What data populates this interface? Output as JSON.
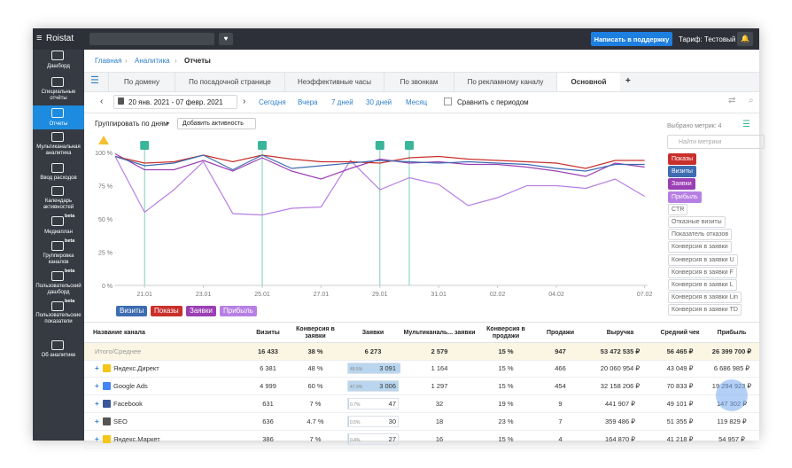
{
  "topbar": {
    "logo": "Roistat",
    "support_button": "Написать в поддержку",
    "tariff": "Тариф: Тестовый"
  },
  "sidebar": [
    {
      "label": "Дашборд"
    },
    {
      "label": "Специальные отчёты"
    },
    {
      "label": "Отчеты"
    },
    {
      "label": "Мультиканальная аналитика"
    },
    {
      "label": "Ввод расходов"
    },
    {
      "label": "Календарь активностей"
    },
    {
      "label": "Медиаплан",
      "badge": "beta"
    },
    {
      "label": "Группировка каналов",
      "badge": "beta"
    },
    {
      "label": "Пользовательский дашборд",
      "badge": "beta"
    },
    {
      "label": "Пользовательские показатели",
      "badge": "beta"
    },
    {
      "label": "Об аналитике"
    }
  ],
  "breadcrumb": [
    "Главная",
    "Аналитика",
    "Отчеты"
  ],
  "tabs": [
    "По домену",
    "По посадочной странице",
    "Неэффективные часы",
    "По звонкам",
    "По рекламному каналу",
    "Основной"
  ],
  "add_tab": "+",
  "date_bar": {
    "range": "20 янв. 2021 - 07 февр. 2021",
    "presets": [
      "Сегодня",
      "Вчера",
      "7 дней",
      "30 дней",
      "Месяц"
    ],
    "compare": "Сравнить с периодом"
  },
  "toolbar": {
    "group_by": "Группировать по дням",
    "add_activity": "Добавить активность"
  },
  "chart_data": {
    "type": "line",
    "categories": [
      null,
      "21.01",
      null,
      "23.01",
      null,
      "25.01",
      null,
      "27.01",
      null,
      "29.01",
      null,
      "31.01",
      null,
      "02.02",
      null,
      "04.02",
      null,
      null,
      "07.02"
    ],
    "ylim": [
      0,
      100
    ],
    "yticks": [
      {
        "value": 0,
        "label": "0 %"
      },
      {
        "value": 25,
        "label": "25 %"
      },
      {
        "value": 50,
        "label": "50 %"
      },
      {
        "value": 75,
        "label": "75 %"
      },
      {
        "value": 100,
        "label": "100 %"
      }
    ],
    "grid": false,
    "series": [
      {
        "name": "Визиты",
        "color": "#3d6cb0",
        "values": [
          97,
          90,
          92,
          98,
          87,
          98,
          88,
          90,
          92,
          94,
          93,
          92,
          93,
          92,
          91,
          88,
          86,
          91,
          91
        ]
      },
      {
        "name": "Показы",
        "color": "#c9302c",
        "values": [
          97,
          92,
          93,
          98,
          93,
          98,
          95,
          93,
          93,
          92,
          96,
          97,
          95,
          94,
          93,
          92,
          88,
          94,
          94
        ]
      },
      {
        "name": "Заявки",
        "color": "#9b3fb5",
        "values": [
          99,
          87,
          87,
          94,
          86,
          96,
          86,
          80,
          88,
          95,
          92,
          93,
          91,
          91,
          89,
          86,
          82,
          92,
          89
        ]
      },
      {
        "name": "Прибыль",
        "color": "#b77fe3",
        "values": [
          97,
          55,
          72,
          93,
          54,
          53,
          58,
          59,
          94,
          72,
          81,
          76,
          60,
          66,
          75,
          75,
          73,
          80,
          67
        ]
      }
    ]
  },
  "metrics_panel": {
    "selected": "Выбрано метрик: 4",
    "search_placeholder": "Найти метрики",
    "items": [
      {
        "label": "Показы",
        "color": "#c9302c"
      },
      {
        "label": "Визиты",
        "color": "#3d6cb0"
      },
      {
        "label": "Заявки",
        "color": "#9b3fb5"
      },
      {
        "label": "Прибыль",
        "color": "#b77fe3"
      },
      {
        "label": "CTR"
      },
      {
        "label": "Отказные визиты"
      },
      {
        "label": "Показатель отказов"
      },
      {
        "label": "Конверсия в заявки"
      },
      {
        "label": "Конверсия в заявки U"
      },
      {
        "label": "Конверсия в заявки F"
      },
      {
        "label": "Конверсия в заявки L"
      },
      {
        "label": "Конверсия в заявки Lin"
      },
      {
        "label": "Конверсия в заявки TD"
      }
    ]
  },
  "table": {
    "columns": [
      "Название канала",
      "Визиты",
      "Конверсия в заявки",
      "Заявки",
      "Мультиканаль... заявки",
      "Конверсия в продажи",
      "Продажи",
      "Выручка",
      "Средний чек",
      "Прибыль"
    ],
    "total": {
      "name": "Итого/Среднее",
      "cells": [
        "16 433",
        "38 %",
        "6 273",
        "2 579",
        "15 %",
        "947",
        "53 472 535 ₽",
        "56 465 ₽",
        "26 399 700 ₽"
      ]
    },
    "rows": [
      {
        "name": "Яндекс.Директ",
        "share": {
          "value": 49.5,
          "label": "49.5%"
        },
        "cells": [
          "6 381",
          "48 %",
          "3 091",
          "1 164",
          "15 %",
          "466",
          "20 060 954 ₽",
          "43 049 ₽",
          "6 686 985 ₽"
        ]
      },
      {
        "name": "Google Ads",
        "share": {
          "value": 47.9,
          "label": "47.9%"
        },
        "cells": [
          "4 999",
          "60 %",
          "3 006",
          "1 297",
          "15 %",
          "454",
          "32 158 206 ₽",
          "70 833 ₽",
          "19 294 923 ₽"
        ]
      },
      {
        "name": "Facebook",
        "share": {
          "value": 0.7,
          "label": "0.7%"
        },
        "cells": [
          "631",
          "7 %",
          "47",
          "32",
          "19 %",
          "9",
          "441 907 ₽",
          "49 101 ₽",
          "147 302 ₽"
        ]
      },
      {
        "name": "SEO",
        "share": {
          "value": 0.5,
          "label": "0.5%"
        },
        "cells": [
          "636",
          "4.7 %",
          "30",
          "18",
          "23 %",
          "7",
          "359 486 ₽",
          "51 355 ₽",
          "119 829 ₽"
        ]
      },
      {
        "name": "Яндекс.Маркет",
        "share": {
          "value": 0.4,
          "label": "0.4%"
        },
        "cells": [
          "386",
          "7 %",
          "27",
          "16",
          "15 %",
          "4",
          "164 870 ₽",
          "41 218 ₽",
          "54 957 ₽"
        ]
      }
    ]
  }
}
